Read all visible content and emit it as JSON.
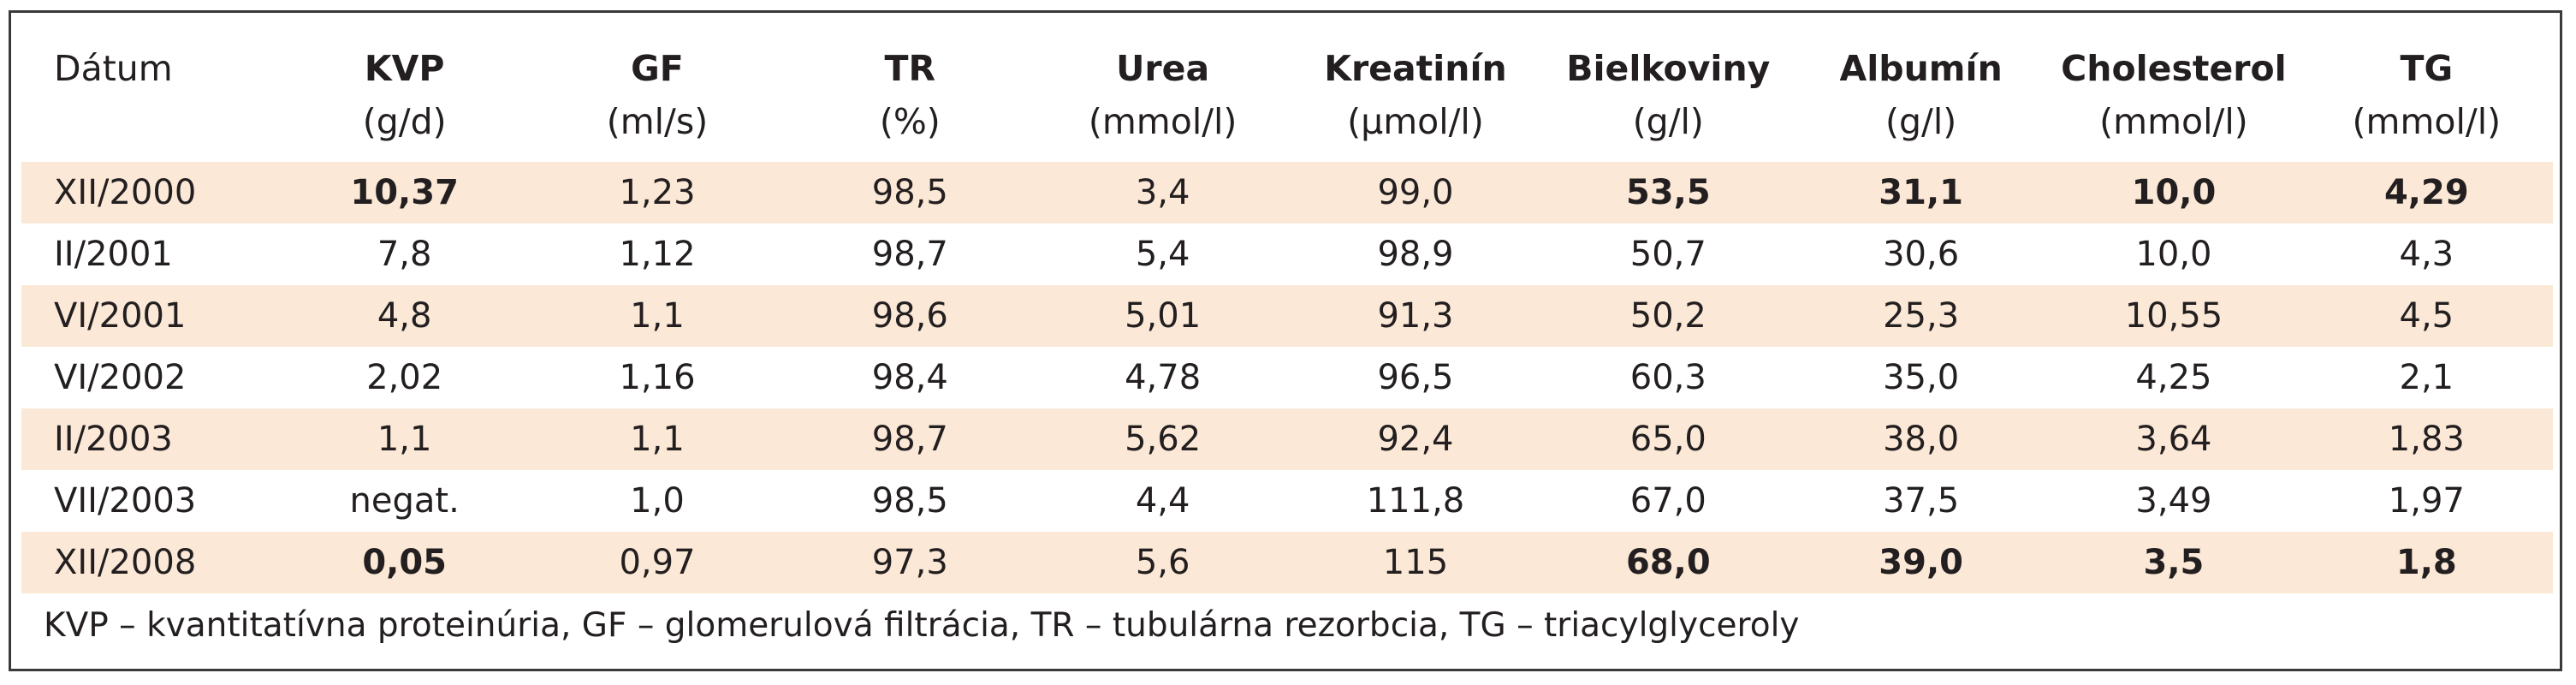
{
  "table": {
    "columns": [
      {
        "name": "Dátum",
        "unit": ""
      },
      {
        "name": "KVP",
        "unit": "(g/d)"
      },
      {
        "name": "GF",
        "unit": "(ml/s)"
      },
      {
        "name": "TR",
        "unit": "(%)"
      },
      {
        "name": "Urea",
        "unit": "(mmol/l)"
      },
      {
        "name": "Kreatinín",
        "unit": "(µmol/l)"
      },
      {
        "name": "Bielkoviny",
        "unit": "(g/l)"
      },
      {
        "name": "Albumín",
        "unit": "(g/l)"
      },
      {
        "name": "Cholesterol",
        "unit": "(mmol/l)"
      },
      {
        "name": "TG",
        "unit": "(mmol/l)"
      }
    ],
    "rows": [
      {
        "date": "XII/2000",
        "kvp": "10,37",
        "gf": "1,23",
        "tr": "98,5",
        "urea": "3,4",
        "kreatinin": "99,0",
        "bielkoviny": "53,5",
        "albumin": "31,1",
        "cholesterol": "10,0",
        "tg": "4,29"
      },
      {
        "date": "II/2001",
        "kvp": "7,8",
        "gf": "1,12",
        "tr": "98,7",
        "urea": "5,4",
        "kreatinin": "98,9",
        "bielkoviny": "50,7",
        "albumin": "30,6",
        "cholesterol": "10,0",
        "tg": "4,3"
      },
      {
        "date": "VI/2001",
        "kvp": "4,8",
        "gf": "1,1",
        "tr": "98,6",
        "urea": "5,01",
        "kreatinin": "91,3",
        "bielkoviny": "50,2",
        "albumin": "25,3",
        "cholesterol": "10,55",
        "tg": "4,5"
      },
      {
        "date": "VI/2002",
        "kvp": "2,02",
        "gf": "1,16",
        "tr": "98,4",
        "urea": "4,78",
        "kreatinin": "96,5",
        "bielkoviny": "60,3",
        "albumin": "35,0",
        "cholesterol": "4,25",
        "tg": "2,1"
      },
      {
        "date": "II/2003",
        "kvp": "1,1",
        "gf": "1,1",
        "tr": "98,7",
        "urea": "5,62",
        "kreatinin": "92,4",
        "bielkoviny": "65,0",
        "albumin": "38,0",
        "cholesterol": "3,64",
        "tg": "1,83"
      },
      {
        "date": "VII/2003",
        "kvp": "negat.",
        "gf": "1,0",
        "tr": "98,5",
        "urea": "4,4",
        "kreatinin": "111,8",
        "bielkoviny": "67,0",
        "albumin": "37,5",
        "cholesterol": "3,49",
        "tg": "1,97"
      },
      {
        "date": "XII/2008",
        "kvp": "0,05",
        "gf": "0,97",
        "tr": "97,3",
        "urea": "5,6",
        "kreatinin": "115",
        "bielkoviny": "68,0",
        "albumin": "39,0",
        "cholesterol": "3,5",
        "tg": "1,8"
      }
    ]
  },
  "footnote": "KVP – kvantitatívna proteinúria, GF – glomerulová filtrácia, TR – tubulárna rezorbcia, TG – triacylglyceroly",
  "colors": {
    "row_shade": "#fbe8d6",
    "border": "#3a3a3a"
  }
}
